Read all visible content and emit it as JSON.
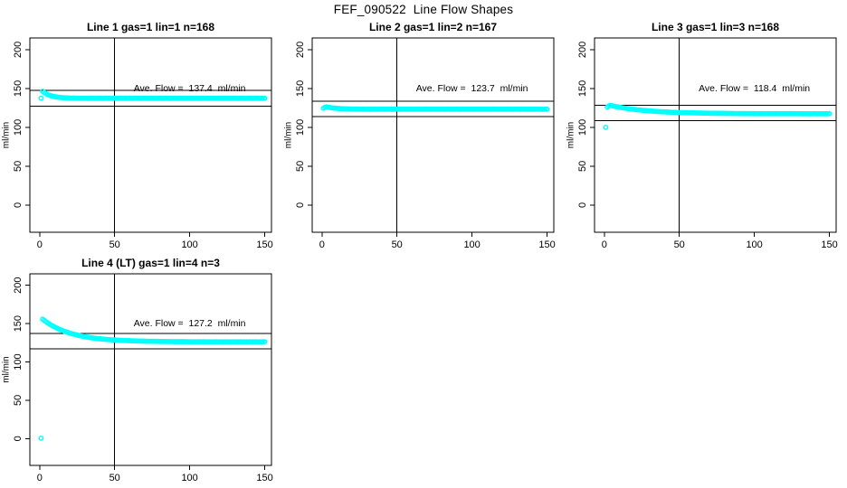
{
  "page": {
    "title": "FEF_090522  Line Flow Shapes"
  },
  "colors": {
    "points": "#00FFFF",
    "axis": "#000000",
    "background": "#ffffff"
  },
  "chart_data": [
    {
      "type": "scatter",
      "title": "Line 1 gas=1 lin=1 n=168",
      "annotation": "Ave. Flow =  137.4  ml/min",
      "ave_flow": 137.4,
      "ylabel": "ml/min",
      "xlabel": "",
      "xticks": [
        0,
        50,
        100,
        150
      ],
      "yticks": [
        0,
        50,
        100,
        150,
        200
      ],
      "xlim": [
        -6.5,
        154.5
      ],
      "ylim": [
        -35,
        215
      ],
      "grid": false,
      "vline_x": 50,
      "hlines": [
        147.4,
        127.4
      ],
      "annotation_pos": {
        "x": 100,
        "y": 150
      },
      "marker": "open-circle",
      "x_start": 1,
      "x_step": 1,
      "y": [
        137.5,
        146.4,
        144.9,
        143.7,
        142.6,
        141.7,
        141.0,
        140.4,
        139.9,
        139.5,
        139.2,
        138.9,
        138.6,
        138.4,
        138.2,
        138.1,
        138.0,
        137.9,
        137.8,
        137.7,
        137.7,
        137.6,
        137.6,
        137.5,
        137.5,
        137.5,
        137.4,
        137.4,
        137.4,
        137.4,
        137.4,
        137.3,
        137.4,
        137.5,
        137.4,
        137.4,
        137.3,
        137.4,
        137.4,
        137.5,
        137.4,
        137.3,
        137.4,
        137.5,
        137.4,
        137.4,
        137.3,
        137.4,
        137.4,
        137.5,
        137.4,
        137.3,
        137.4,
        137.5,
        137.4,
        137.4,
        137.3,
        137.4,
        137.4,
        137.5,
        137.4,
        137.3,
        137.4,
        137.5,
        137.4,
        137.4,
        137.3,
        137.4,
        137.4,
        137.5,
        137.4,
        137.3,
        137.4,
        137.5,
        137.4,
        137.4,
        137.3,
        137.4,
        137.4,
        137.5,
        137.4,
        137.3,
        137.4,
        137.5,
        137.4,
        137.4,
        137.3,
        137.4,
        137.4,
        137.5,
        137.4,
        137.3,
        137.4,
        137.5,
        137.4,
        137.4,
        137.3,
        137.4,
        137.4,
        137.5,
        137.4,
        137.3,
        137.4,
        137.5,
        137.4,
        137.4,
        137.3,
        137.4,
        137.4,
        137.5,
        137.4,
        137.3,
        137.4,
        137.5,
        137.4,
        137.4,
        137.3,
        137.4,
        137.4,
        137.5,
        137.4,
        137.3,
        137.4,
        137.5,
        137.4,
        137.4,
        137.3,
        137.4,
        137.4,
        137.5,
        137.4,
        137.3,
        137.4,
        137.5,
        137.4,
        137.4,
        137.3,
        137.4,
        137.4,
        137.5,
        137.4,
        137.3,
        137.4,
        137.5,
        137.4,
        137.4,
        137.3,
        137.4,
        137.4,
        137.5
      ]
    },
    {
      "type": "scatter",
      "title": "Line 2 gas=1 lin=2 n=167",
      "annotation": "Ave. Flow =  123.7  ml/min",
      "ave_flow": 123.7,
      "ylabel": "ml/min",
      "xlabel": "",
      "xticks": [
        0,
        50,
        100,
        150
      ],
      "yticks": [
        0,
        50,
        100,
        150,
        200
      ],
      "xlim": [
        -6.5,
        154.5
      ],
      "ylim": [
        -35,
        215
      ],
      "grid": false,
      "vline_x": 50,
      "hlines": [
        133.7,
        113.7
      ],
      "annotation_pos": {
        "x": 100,
        "y": 150
      },
      "marker": "open-circle",
      "x_start": 1,
      "x_step": 1,
      "y": [
        124.5,
        125.7,
        126.3,
        125.9,
        125.6,
        125.3,
        125.0,
        124.8,
        124.6,
        124.4,
        124.3,
        124.1,
        124.0,
        123.9,
        123.8,
        123.8,
        123.7,
        123.7,
        123.6,
        123.6,
        123.5,
        123.5,
        123.5,
        123.4,
        123.4,
        123.4,
        123.4,
        123.3,
        123.3,
        123.3,
        123.3,
        123.2,
        123.3,
        123.4,
        123.3,
        123.3,
        123.2,
        123.3,
        123.3,
        123.4,
        123.3,
        123.2,
        123.3,
        123.4,
        123.3,
        123.3,
        123.2,
        123.3,
        123.3,
        123.4,
        123.3,
        123.2,
        123.3,
        123.4,
        123.3,
        123.3,
        123.2,
        123.3,
        123.3,
        123.4,
        123.3,
        123.2,
        123.3,
        123.4,
        123.3,
        123.3,
        123.2,
        123.3,
        123.3,
        123.4,
        123.3,
        123.2,
        123.3,
        123.4,
        123.3,
        123.3,
        123.2,
        123.3,
        123.3,
        123.4,
        123.3,
        123.2,
        123.3,
        123.4,
        123.3,
        123.3,
        123.2,
        123.3,
        123.3,
        123.4,
        123.3,
        123.2,
        123.3,
        123.4,
        123.3,
        123.3,
        123.2,
        123.3,
        123.3,
        123.4,
        123.3,
        123.2,
        123.3,
        123.4,
        123.3,
        123.3,
        123.2,
        123.3,
        123.3,
        123.4,
        123.3,
        123.2,
        123.3,
        123.4,
        123.3,
        123.3,
        123.2,
        123.3,
        123.3,
        123.4,
        123.3,
        123.2,
        123.3,
        123.4,
        123.3,
        123.3,
        123.2,
        123.3,
        123.3,
        123.4,
        123.3,
        123.2,
        123.3,
        123.4,
        123.3,
        123.3,
        123.2,
        123.3,
        123.3,
        123.4,
        123.3,
        123.2,
        123.3,
        123.4,
        123.3,
        123.3,
        123.2,
        123.3,
        123.3,
        123.4
      ]
    },
    {
      "type": "scatter",
      "title": "Line 3 gas=1 lin=3 n=168",
      "annotation": "Ave. Flow =  118.4  ml/min",
      "ave_flow": 118.4,
      "ylabel": "ml/min",
      "xlabel": "",
      "xticks": [
        0,
        50,
        100,
        150
      ],
      "yticks": [
        0,
        50,
        100,
        150,
        200
      ],
      "xlim": [
        -6.5,
        154.5
      ],
      "ylim": [
        -35,
        215
      ],
      "grid": false,
      "vline_x": 50,
      "hlines": [
        128.4,
        108.4
      ],
      "annotation_pos": {
        "x": 100,
        "y": 150
      },
      "marker": "open-circle",
      "x_start": 1,
      "x_step": 1,
      "y": [
        100.0,
        126.0,
        127.5,
        128.3,
        127.9,
        127.4,
        127.0,
        126.6,
        126.3,
        125.9,
        125.6,
        125.2,
        124.9,
        124.6,
        124.3,
        124.1,
        123.8,
        123.5,
        123.3,
        123.1,
        122.8,
        122.6,
        122.4,
        122.2,
        122.0,
        121.8,
        121.6,
        121.5,
        121.3,
        121.2,
        121.0,
        120.9,
        120.7,
        120.6,
        120.5,
        120.4,
        120.2,
        120.1,
        120.0,
        119.9,
        119.8,
        119.7,
        119.6,
        119.5,
        119.4,
        119.4,
        119.3,
        119.2,
        119.1,
        119.1,
        119.0,
        118.9,
        118.9,
        118.8,
        118.8,
        118.7,
        118.7,
        118.6,
        118.6,
        118.6,
        118.5,
        118.5,
        118.4,
        118.4,
        118.4,
        118.3,
        118.3,
        118.3,
        118.2,
        118.2,
        118.2,
        118.1,
        118.1,
        118.1,
        118.1,
        118.0,
        118.0,
        118.0,
        118.0,
        118.0,
        117.9,
        117.9,
        117.9,
        117.9,
        117.9,
        117.8,
        117.8,
        117.8,
        117.8,
        117.8,
        117.8,
        117.7,
        117.7,
        117.7,
        117.7,
        117.7,
        117.7,
        117.7,
        117.7,
        117.7,
        117.6,
        117.5,
        117.6,
        117.7,
        117.6,
        117.6,
        117.5,
        117.6,
        117.6,
        117.7,
        117.6,
        117.5,
        117.6,
        117.7,
        117.6,
        117.6,
        117.5,
        117.6,
        117.6,
        117.7,
        117.6,
        117.5,
        117.6,
        117.7,
        117.6,
        117.6,
        117.5,
        117.6,
        117.6,
        117.7,
        117.5,
        117.4,
        117.5,
        117.6,
        117.5,
        117.5,
        117.4,
        117.5,
        117.5,
        117.6,
        117.5,
        117.4,
        117.5,
        117.6,
        117.5,
        117.5,
        117.4,
        117.5,
        117.5,
        117.6
      ]
    },
    {
      "type": "scatter",
      "title": "Line 4 (LT) gas=1 lin=4 n=3",
      "annotation": "Ave. Flow =  127.2  ml/min",
      "ave_flow": 127.2,
      "ylabel": "ml/min",
      "xlabel": "",
      "xticks": [
        0,
        50,
        100,
        150
      ],
      "yticks": [
        0,
        50,
        100,
        150,
        200
      ],
      "xlim": [
        -6.5,
        154.5
      ],
      "ylim": [
        -35,
        215
      ],
      "grid": false,
      "vline_x": 50,
      "hlines": [
        137.2,
        117.2
      ],
      "annotation_pos": {
        "x": 100,
        "y": 150
      },
      "marker": "open-circle",
      "x_start": 1,
      "x_step": 1,
      "y": [
        0.5,
        155.8,
        154.3,
        152.9,
        151.5,
        150.2,
        149.0,
        147.8,
        146.7,
        145.7,
        144.7,
        143.7,
        142.8,
        142.0,
        141.2,
        140.4,
        139.7,
        139.0,
        138.4,
        137.7,
        137.2,
        136.6,
        136.1,
        135.6,
        135.1,
        134.6,
        134.2,
        133.8,
        133.4,
        133.1,
        132.7,
        132.4,
        132.1,
        131.8,
        131.5,
        131.2,
        131.0,
        130.7,
        130.5,
        130.3,
        130.1,
        129.9,
        129.7,
        129.5,
        129.4,
        129.2,
        129.1,
        128.9,
        128.8,
        128.7,
        128.5,
        128.4,
        128.3,
        128.2,
        128.1,
        128.0,
        127.9,
        127.9,
        127.8,
        127.7,
        127.6,
        127.6,
        127.5,
        127.4,
        127.4,
        127.3,
        127.3,
        127.2,
        127.2,
        127.1,
        127.1,
        127.0,
        127.0,
        127.0,
        126.9,
        126.9,
        126.9,
        126.8,
        126.8,
        126.8,
        126.7,
        126.7,
        126.7,
        126.7,
        126.7,
        126.6,
        126.6,
        126.6,
        126.6,
        126.6,
        126.5,
        126.5,
        126.5,
        126.5,
        126.5,
        126.5,
        126.5,
        126.4,
        126.4,
        126.4,
        126.4,
        126.3,
        126.4,
        126.4,
        126.3,
        126.4,
        126.4,
        126.3,
        126.4,
        126.4,
        126.3,
        126.3,
        126.4,
        126.3,
        126.2,
        126.3,
        126.3,
        126.4,
        126.3,
        126.3,
        126.3,
        126.2,
        126.3,
        126.4,
        126.3,
        126.3,
        126.2,
        126.3,
        126.3,
        126.4,
        126.3,
        126.2,
        126.3,
        126.4,
        126.3,
        126.3,
        126.2,
        126.3,
        126.3,
        126.4,
        126.3,
        126.2,
        126.3,
        126.4,
        126.3,
        126.3,
        126.2,
        126.3,
        126.3,
        126.4
      ]
    }
  ]
}
